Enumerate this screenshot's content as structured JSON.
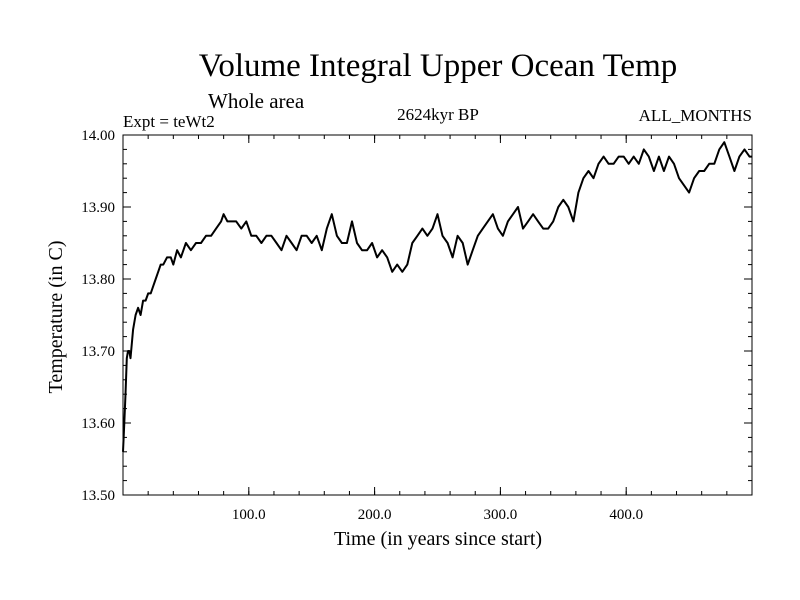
{
  "chart_data": {
    "type": "line",
    "title": "Volume Integral Upper Ocean Temp",
    "subtitle": "Whole area",
    "experiment_label": "Expt = teWt2",
    "period_label": "2624kyr BP",
    "months_label": "ALL_MONTHS",
    "xlabel": "Time (in years since start)",
    "ylabel": "Temperature (in C)",
    "xlim": [
      0,
      500
    ],
    "ylim": [
      13.5,
      14.0
    ],
    "xticks": [
      100,
      200,
      300,
      400
    ],
    "xtick_labels": [
      "100.0",
      "200.0",
      "300.0",
      "400.0"
    ],
    "yticks": [
      13.5,
      13.6,
      13.7,
      13.8,
      13.9,
      14.0
    ],
    "ytick_labels": [
      "13.50",
      "13.60",
      "13.70",
      "13.80",
      "13.90",
      "14.00"
    ],
    "grid": false,
    "series": [
      {
        "name": "Volume Integral Upper Ocean Temp",
        "color": "#000000",
        "x": [
          0,
          1,
          2,
          3,
          4,
          5,
          6,
          7,
          8,
          10,
          12,
          14,
          16,
          18,
          20,
          22,
          24,
          26,
          28,
          30,
          32,
          35,
          38,
          40,
          43,
          46,
          50,
          54,
          58,
          62,
          66,
          70,
          74,
          78,
          80,
          83,
          86,
          90,
          94,
          98,
          102,
          106,
          110,
          114,
          118,
          122,
          126,
          130,
          134,
          138,
          142,
          146,
          150,
          154,
          158,
          162,
          166,
          170,
          174,
          178,
          182,
          186,
          190,
          194,
          198,
          202,
          206,
          210,
          214,
          218,
          222,
          226,
          230,
          234,
          238,
          242,
          246,
          250,
          254,
          258,
          262,
          266,
          270,
          274,
          278,
          282,
          286,
          290,
          294,
          298,
          302,
          306,
          310,
          314,
          318,
          322,
          326,
          330,
          334,
          338,
          342,
          346,
          350,
          354,
          358,
          362,
          366,
          370,
          374,
          378,
          382,
          386,
          390,
          394,
          398,
          402,
          406,
          410,
          414,
          418,
          422,
          426,
          430,
          434,
          438,
          442,
          446,
          450,
          454,
          458,
          462,
          466,
          470,
          474,
          478,
          482,
          486,
          490,
          494,
          498,
          500
        ],
        "values": [
          13.56,
          13.6,
          13.64,
          13.69,
          13.7,
          13.7,
          13.69,
          13.71,
          13.73,
          13.75,
          13.76,
          13.75,
          13.77,
          13.77,
          13.78,
          13.78,
          13.79,
          13.8,
          13.81,
          13.82,
          13.82,
          13.83,
          13.83,
          13.82,
          13.84,
          13.83,
          13.85,
          13.84,
          13.85,
          13.85,
          13.86,
          13.86,
          13.87,
          13.88,
          13.89,
          13.88,
          13.88,
          13.88,
          13.87,
          13.88,
          13.86,
          13.86,
          13.85,
          13.86,
          13.86,
          13.85,
          13.84,
          13.86,
          13.85,
          13.84,
          13.86,
          13.86,
          13.85,
          13.86,
          13.84,
          13.87,
          13.89,
          13.86,
          13.85,
          13.85,
          13.88,
          13.85,
          13.84,
          13.84,
          13.85,
          13.83,
          13.84,
          13.83,
          13.81,
          13.82,
          13.81,
          13.82,
          13.85,
          13.86,
          13.87,
          13.86,
          13.87,
          13.89,
          13.86,
          13.85,
          13.83,
          13.86,
          13.85,
          13.82,
          13.84,
          13.86,
          13.87,
          13.88,
          13.89,
          13.87,
          13.86,
          13.88,
          13.89,
          13.9,
          13.87,
          13.88,
          13.89,
          13.88,
          13.87,
          13.87,
          13.88,
          13.9,
          13.91,
          13.9,
          13.88,
          13.92,
          13.94,
          13.95,
          13.94,
          13.96,
          13.97,
          13.96,
          13.96,
          13.97,
          13.97,
          13.96,
          13.97,
          13.96,
          13.98,
          13.97,
          13.95,
          13.97,
          13.95,
          13.97,
          13.96,
          13.94,
          13.93,
          13.92,
          13.94,
          13.95,
          13.95,
          13.96,
          13.96,
          13.98,
          13.99,
          13.97,
          13.95,
          13.97,
          13.98,
          13.97,
          13.97
        ]
      }
    ]
  }
}
